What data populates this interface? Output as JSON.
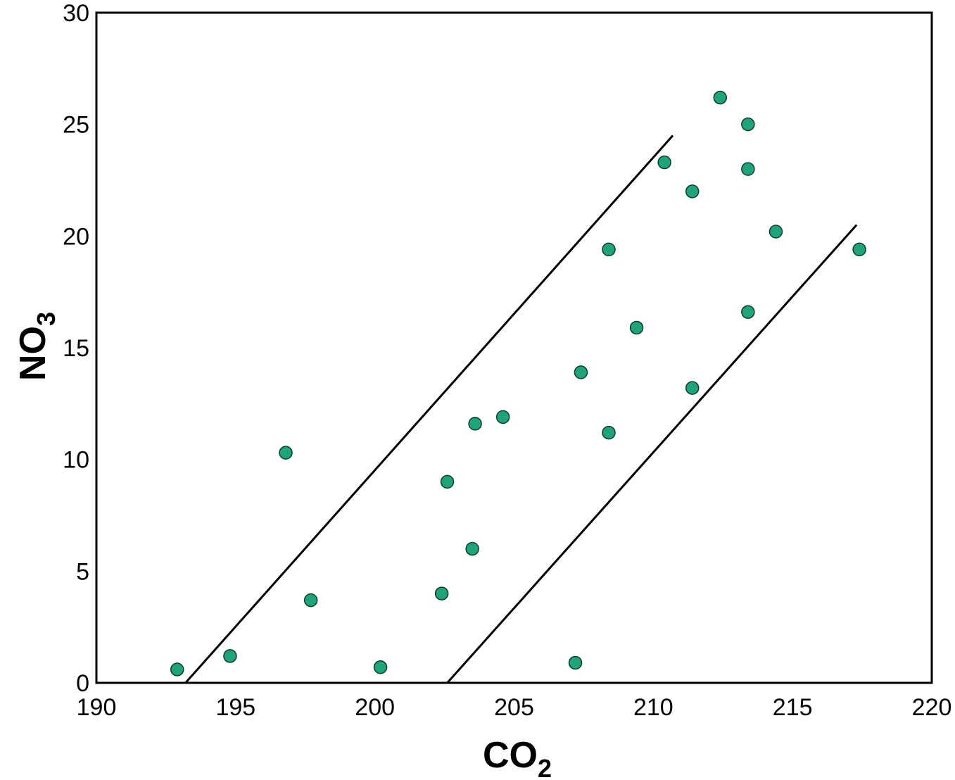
{
  "chart_data": {
    "type": "scatter",
    "title": "",
    "xlabel": {
      "base": "CO",
      "subscript": "2"
    },
    "ylabel": {
      "base": "NO",
      "subscript": "3"
    },
    "xlim": [
      190,
      220
    ],
    "ylim": [
      0,
      30
    ],
    "xticks": [
      190,
      195,
      200,
      205,
      210,
      215,
      220
    ],
    "yticks": [
      0,
      5,
      10,
      15,
      20,
      25,
      30
    ],
    "grid": false,
    "legend": "none",
    "marker_color": "#1fa37a",
    "marker_edge": "#0d3b2a",
    "points": [
      {
        "x": 192.9,
        "y": 0.6
      },
      {
        "x": 194.8,
        "y": 1.2
      },
      {
        "x": 196.8,
        "y": 10.3
      },
      {
        "x": 197.7,
        "y": 3.7
      },
      {
        "x": 200.2,
        "y": 0.7
      },
      {
        "x": 202.4,
        "y": 4.0
      },
      {
        "x": 202.6,
        "y": 9.0
      },
      {
        "x": 203.5,
        "y": 6.0
      },
      {
        "x": 203.6,
        "y": 11.6
      },
      {
        "x": 204.6,
        "y": 11.9
      },
      {
        "x": 207.2,
        "y": 0.9
      },
      {
        "x": 207.4,
        "y": 13.9
      },
      {
        "x": 208.4,
        "y": 11.2
      },
      {
        "x": 208.4,
        "y": 19.4
      },
      {
        "x": 209.4,
        "y": 15.9
      },
      {
        "x": 210.4,
        "y": 23.3
      },
      {
        "x": 211.4,
        "y": 13.2
      },
      {
        "x": 211.4,
        "y": 22.0
      },
      {
        "x": 212.4,
        "y": 26.2
      },
      {
        "x": 213.4,
        "y": 16.6
      },
      {
        "x": 213.4,
        "y": 23.0
      },
      {
        "x": 213.4,
        "y": 25.0
      },
      {
        "x": 214.4,
        "y": 20.2
      },
      {
        "x": 217.4,
        "y": 19.4
      }
    ],
    "lines": [
      {
        "name": "",
        "x": [
          193.2,
          210.7
        ],
        "y": [
          0.0,
          24.5
        ]
      },
      {
        "name": "",
        "x": [
          202.6,
          217.3
        ],
        "y": [
          0.0,
          20.5
        ]
      }
    ]
  }
}
